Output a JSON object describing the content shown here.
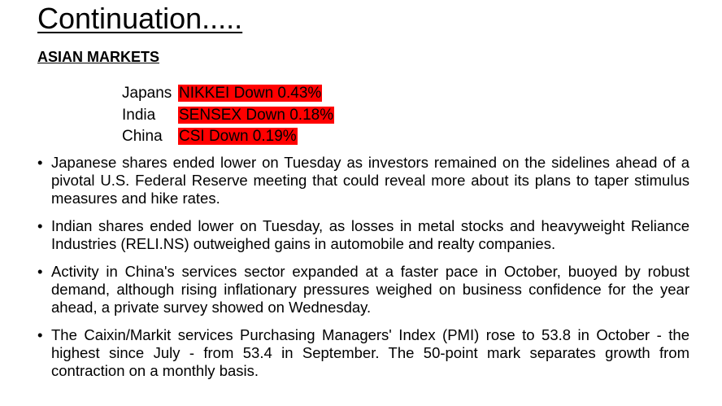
{
  "header": {
    "title": "Continuation.....",
    "section": "ASIAN MARKETS"
  },
  "markets": [
    {
      "country": "Japans",
      "index": "NIKKEI Down 0.43%"
    },
    {
      "country": "India",
      "index": "SENSEX Down 0.18%"
    },
    {
      "country": "China",
      "index": "CSI Down 0.19%"
    }
  ],
  "bullets": [
    "Japanese shares ended lower on Tuesday as investors remained on the sidelines ahead of a pivotal U.S. Federal Reserve meeting that could reveal more about its plans to taper stimulus measures and hike rates.",
    "Indian shares ended lower on Tuesday, as losses in metal stocks and heavyweight Reliance Industries (RELI.NS) outweighed gains in automobile and realty companies.",
    "Activity in China's services sector expanded at a faster pace in October, buoyed by robust demand, although rising inflationary pressures weighed on business confidence for the year ahead, a private survey showed on Wednesday.",
    "The Caixin/Markit services Purchasing Managers' Index (PMI) rose to 53.8 in October - the highest since July - from 53.4 in September. The 50-point mark separates growth from contraction on a monthly basis."
  ]
}
